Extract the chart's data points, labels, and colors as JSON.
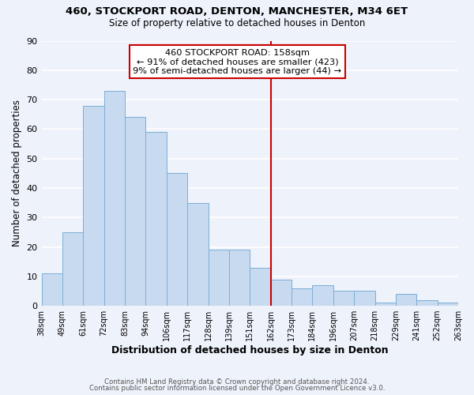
{
  "title": "460, STOCKPORT ROAD, DENTON, MANCHESTER, M34 6ET",
  "subtitle": "Size of property relative to detached houses in Denton",
  "xlabel": "Distribution of detached houses by size in Denton",
  "ylabel": "Number of detached properties",
  "bar_labels": [
    "38sqm",
    "49sqm",
    "61sqm",
    "72sqm",
    "83sqm",
    "94sqm",
    "106sqm",
    "117sqm",
    "128sqm",
    "139sqm",
    "151sqm",
    "162sqm",
    "173sqm",
    "184sqm",
    "196sqm",
    "207sqm",
    "218sqm",
    "229sqm",
    "241sqm",
    "252sqm",
    "263sqm"
  ],
  "bar_heights": [
    11,
    25,
    68,
    73,
    64,
    59,
    45,
    35,
    19,
    19,
    13,
    9,
    6,
    7,
    5,
    5,
    1,
    4,
    2,
    1
  ],
  "bar_color": "#c8daf0",
  "bar_edge_color": "#7aaed6",
  "vline_color": "#cc0000",
  "annotation_title": "460 STOCKPORT ROAD: 158sqm",
  "annotation_line1": "← 91% of detached houses are smaller (423)",
  "annotation_line2": "9% of semi-detached houses are larger (44) →",
  "annotation_box_color": "#ffffff",
  "annotation_border_color": "#cc0000",
  "footer_line1": "Contains HM Land Registry data © Crown copyright and database right 2024.",
  "footer_line2": "Contains public sector information licensed under the Open Government Licence v3.0.",
  "ylim": [
    0,
    90
  ],
  "background_color": "#eef2fa",
  "grid_color": "#ffffff"
}
